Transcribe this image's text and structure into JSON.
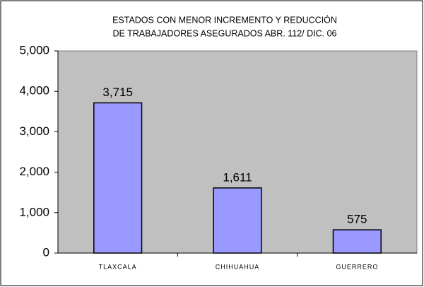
{
  "chart_data": {
    "type": "bar",
    "title": [
      "ESTADOS CON MENOR INCREMENTO Y REDUCCIÓN",
      "DE TRABAJADORES ASEGURADOS ABR. 112/ DIC. 06"
    ],
    "categories": [
      "TLAXCALA",
      "CHIHUAHUA",
      "GUERRERO"
    ],
    "values": [
      3715,
      1611,
      575
    ],
    "value_labels": [
      "3,715",
      "1,611",
      "575"
    ],
    "color": "#9999ff",
    "ylim": [
      0,
      5000
    ],
    "yticks": [
      0,
      {
        "value": 1000,
        "label": "1,000"
      },
      {
        "value": 2000,
        "label": "2,000"
      },
      {
        "value": 3000,
        "label": "3,000"
      },
      {
        "value": 4000,
        "label": "4,000"
      },
      {
        "value": 5000,
        "label": "5,000"
      }
    ],
    "grid": false
  }
}
